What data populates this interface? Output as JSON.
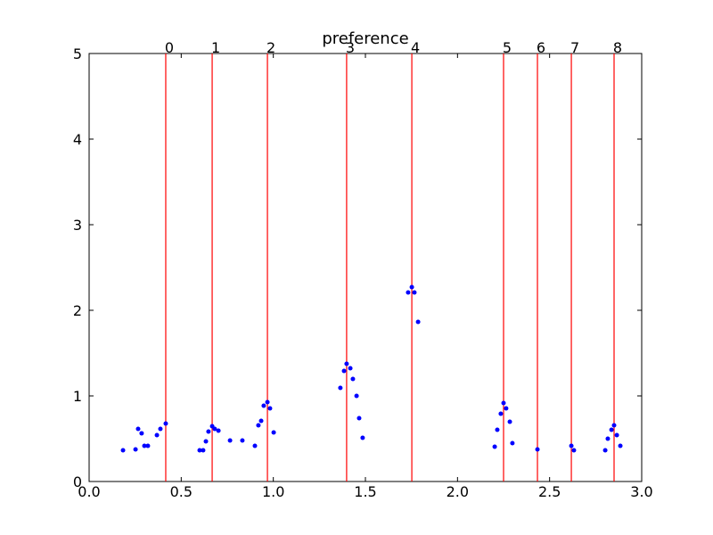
{
  "chart_data": {
    "type": "scatter",
    "title": "preference",
    "color": "#0000ff",
    "line_color": "#ff0000",
    "x": [
      0.184,
      0.252,
      0.266,
      0.285,
      0.3,
      0.319,
      0.368,
      0.387,
      0.416,
      0.6,
      0.619,
      0.634,
      0.648,
      0.668,
      0.682,
      0.702,
      0.765,
      0.832,
      0.9,
      0.919,
      0.934,
      0.948,
      0.968,
      0.982,
      1.002,
      1.364,
      1.384,
      1.398,
      1.418,
      1.432,
      1.452,
      1.466,
      1.485,
      1.732,
      1.752,
      1.766,
      1.786,
      2.202,
      2.216,
      2.235,
      2.25,
      2.264,
      2.284,
      2.298,
      2.434,
      2.618,
      2.632,
      2.802,
      2.816,
      2.836,
      2.85,
      2.865,
      2.884
    ],
    "values": [
      0.365,
      0.375,
      0.615,
      0.563,
      0.417,
      0.417,
      0.542,
      0.615,
      0.677,
      0.365,
      0.365,
      0.469,
      0.583,
      0.646,
      0.615,
      0.594,
      0.479,
      0.479,
      0.417,
      0.656,
      0.708,
      0.885,
      0.927,
      0.854,
      0.573,
      1.094,
      1.292,
      1.375,
      1.323,
      1.198,
      1.0,
      0.74,
      0.51,
      2.208,
      2.271,
      2.208,
      1.865,
      0.406,
      0.604,
      0.792,
      0.917,
      0.854,
      0.698,
      0.448,
      0.375,
      0.417,
      0.365,
      0.365,
      0.5,
      0.604,
      0.656,
      0.542,
      0.417
    ],
    "vlines": [
      0.416,
      0.668,
      0.968,
      1.398,
      1.752,
      2.25,
      2.434,
      2.618,
      2.85
    ],
    "vline_labels": [
      "0",
      "1",
      "2",
      "3",
      "4",
      "5",
      "6",
      "7",
      "8"
    ],
    "xlim": [
      0,
      3
    ],
    "ylim": [
      0,
      5
    ],
    "xticks": [
      {
        "value": 0,
        "label": "0.0"
      },
      {
        "value": 0.5,
        "label": "0.5"
      },
      {
        "value": 1,
        "label": "1.0"
      },
      {
        "value": 1.5,
        "label": "1.5"
      },
      {
        "value": 2,
        "label": "2.0"
      },
      {
        "value": 2.5,
        "label": "2.5"
      },
      {
        "value": 3,
        "label": "3.0"
      }
    ],
    "yticks": [
      0,
      1,
      2,
      3,
      4,
      5
    ],
    "grid": false
  }
}
